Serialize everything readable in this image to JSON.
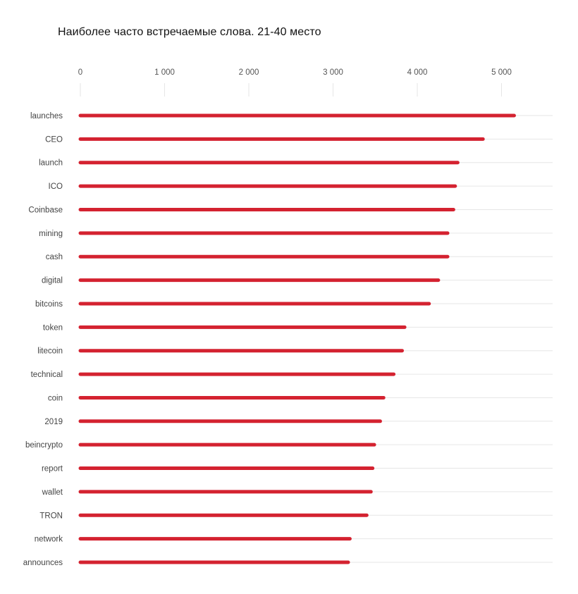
{
  "chart_data": {
    "type": "bar",
    "orientation": "horizontal",
    "title": "Наиболее часто встречаемые слова. 21-40 место",
    "xlabel": "",
    "ylabel": "",
    "xlim": [
      0,
      5600
    ],
    "ticks": [
      0,
      1000,
      2000,
      3000,
      4000,
      5000
    ],
    "tick_labels": [
      "0",
      "1 000",
      "2 000",
      "3 000",
      "4 000",
      "5 000"
    ],
    "categories": [
      "launches",
      "CEO",
      "launch",
      "ICO",
      "Coinbase",
      "mining",
      "cash",
      "digital",
      "bitcoins",
      "token",
      "litecoin",
      "technical",
      "coin",
      "2019",
      "beincrypto",
      "report",
      "wallet",
      "TRON",
      "network",
      "announces"
    ],
    "values": [
      5150,
      4780,
      4480,
      4450,
      4430,
      4360,
      4360,
      4250,
      4140,
      3850,
      3820,
      3720,
      3600,
      3560,
      3490,
      3470,
      3450,
      3400,
      3200,
      3180
    ],
    "bar_color": "#d42230",
    "grid_color": "#e6e6e6"
  }
}
